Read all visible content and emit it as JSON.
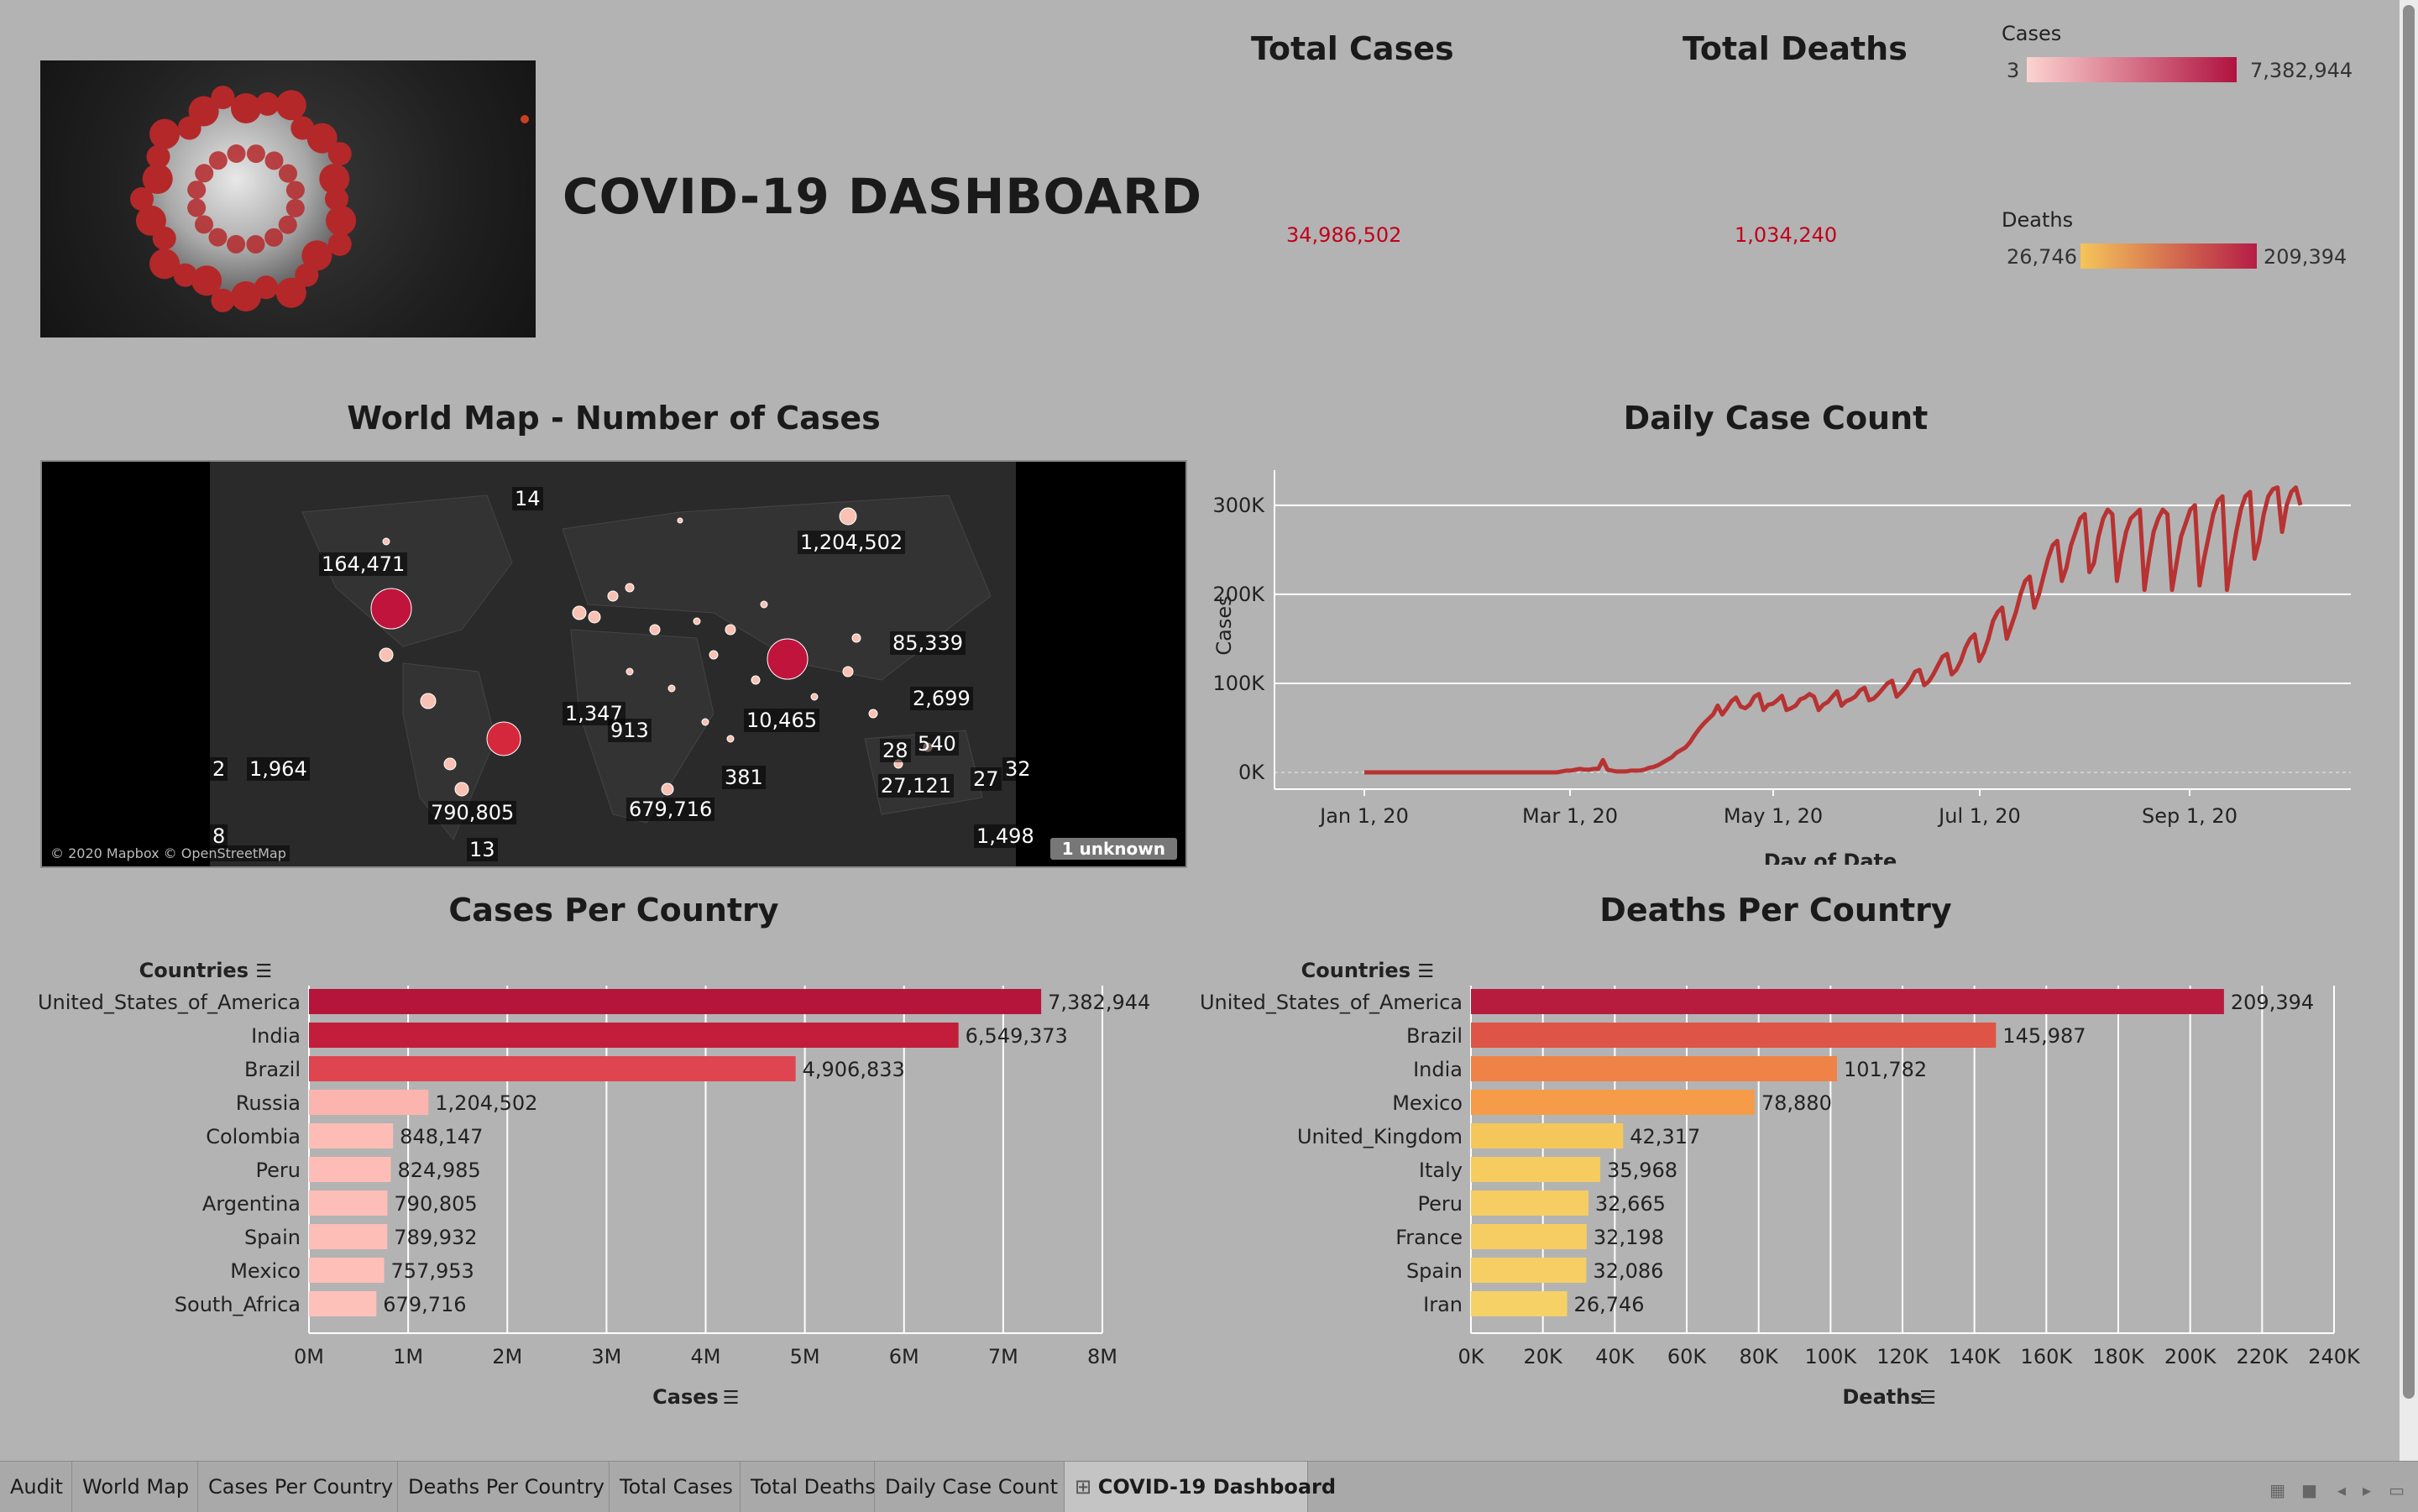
{
  "dashboard": {
    "title": "COVID-19 DASHBOARD",
    "image_alt": "coronavirus-image"
  },
  "kpis": {
    "total_cases_label": "Total Cases",
    "total_cases_value": "34,986,502",
    "total_deaths_label": "Total Deaths",
    "total_deaths_value": "1,034,240"
  },
  "legends": {
    "cases": {
      "label": "Cases",
      "min": "3",
      "max": "7,382,944",
      "color_from": "#fcd3d0",
      "color_to": "#b01240"
    },
    "deaths": {
      "label": "Deaths",
      "min": "26,746",
      "max": "209,394",
      "color_from": "#f5c55a",
      "color_to": "#b51d46"
    }
  },
  "world_map": {
    "title": "World Map - Number of Cases",
    "copyright": "© 2020 Mapbox © OpenStreetMap",
    "unknown_badge": "1 unknown",
    "labels": [
      "14",
      "1,204,502",
      "164,471",
      "85,339",
      "2,699",
      "1,347",
      "913",
      "10,465",
      "2",
      "1,964",
      "28",
      "540",
      "27,121",
      "27",
      "32",
      "381",
      "790,805",
      "679,716",
      "8",
      "13",
      "1,498"
    ]
  },
  "chart_data": [
    {
      "type": "line",
      "title": "Daily Case Count",
      "xlabel": "Day of Date",
      "ylabel": "Cases",
      "x_ticks": [
        "Jan 1, 20",
        "Mar 1, 20",
        "May 1, 20",
        "Jul 1, 20",
        "Sep 1, 20"
      ],
      "y_ticks": [
        "0K",
        "100K",
        "200K",
        "300K"
      ],
      "ylim": [
        0,
        330000
      ],
      "color": "#b83232",
      "series": [
        {
          "values": [
            0,
            0,
            0,
            0,
            0,
            0,
            0,
            0,
            0,
            0,
            0,
            0,
            0,
            0,
            0,
            0,
            0,
            0,
            0,
            0,
            0,
            0,
            0,
            0,
            0,
            0,
            0,
            0,
            0,
            0,
            0,
            0,
            0,
            0,
            0,
            0,
            0,
            0,
            0,
            0,
            0,
            0,
            0,
            1000,
            2000,
            2000,
            3000,
            4000,
            3000,
            3000,
            4000,
            4000,
            14000,
            3000,
            2000,
            1000,
            1000,
            1000,
            2000,
            2000,
            2000,
            3000,
            5000,
            6000,
            8000,
            11000,
            14000,
            17000,
            22000,
            25000,
            28000,
            34000,
            42000,
            49000,
            55000,
            60000,
            65000,
            75000,
            65000,
            72000,
            80000,
            84000,
            74000,
            72000,
            76000,
            85000,
            88000,
            70000,
            76000,
            77000,
            81000,
            86000,
            70000,
            72000,
            75000,
            82000,
            84000,
            88000,
            85000,
            70000,
            76000,
            79000,
            85000,
            91000,
            75000,
            80000,
            82000,
            85000,
            92000,
            95000,
            81000,
            83000,
            88000,
            94000,
            100000,
            103000,
            85000,
            90000,
            96000,
            103000,
            113000,
            115000,
            98000,
            102000,
            110000,
            120000,
            130000,
            133000,
            110000,
            115000,
            125000,
            140000,
            150000,
            155000,
            125000,
            135000,
            150000,
            170000,
            180000,
            185000,
            150000,
            165000,
            180000,
            200000,
            215000,
            220000,
            185000,
            200000,
            220000,
            240000,
            255000,
            260000,
            215000,
            230000,
            255000,
            270000,
            285000,
            290000,
            225000,
            235000,
            265000,
            285000,
            295000,
            290000,
            215000,
            245000,
            270000,
            285000,
            290000,
            295000,
            205000,
            240000,
            270000,
            285000,
            295000,
            290000,
            205000,
            235000,
            265000,
            280000,
            295000,
            300000,
            210000,
            240000,
            265000,
            290000,
            305000,
            310000,
            205000,
            240000,
            270000,
            295000,
            310000,
            315000,
            240000,
            260000,
            290000,
            310000,
            318000,
            320000,
            270000,
            300000,
            315000,
            320000,
            300000
          ]
        }
      ]
    },
    {
      "type": "bar",
      "title": "Cases Per Country",
      "category_header": "Countries",
      "xlabel": "Cases",
      "x_ticks": [
        "0M",
        "1M",
        "2M",
        "3M",
        "4M",
        "5M",
        "6M",
        "7M",
        "8M"
      ],
      "xlim": [
        0,
        8000000
      ],
      "categories": [
        "United_States_of_America",
        "India",
        "Brazil",
        "Russia",
        "Colombia",
        "Peru",
        "Argentina",
        "Spain",
        "Mexico",
        "South_Africa"
      ],
      "values": [
        7382944,
        6549373,
        4906833,
        1204502,
        848147,
        824985,
        790805,
        789932,
        757953,
        679716
      ],
      "value_labels": [
        "7,382,944",
        "6,549,373",
        "4,906,833",
        "1,204,502",
        "848,147",
        "824,985",
        "790,805",
        "789,932",
        "757,953",
        "679,716"
      ],
      "colors": [
        "#b5153b",
        "#c31d3c",
        "#de4550",
        "#fbb5ae",
        "#fdbdb6",
        "#fdbdb6",
        "#fdbeb7",
        "#fdbeb7",
        "#fdbfb8",
        "#fdc1ba"
      ]
    },
    {
      "type": "bar",
      "title": "Deaths Per Country",
      "category_header": "Countries",
      "xlabel": "Deaths",
      "x_ticks": [
        "0K",
        "20K",
        "40K",
        "60K",
        "80K",
        "100K",
        "120K",
        "140K",
        "160K",
        "180K",
        "200K",
        "220K",
        "240K"
      ],
      "xlim": [
        0,
        240000
      ],
      "categories": [
        "United_States_of_America",
        "Brazil",
        "India",
        "Mexico",
        "United_Kingdom",
        "Italy",
        "Peru",
        "France",
        "Spain",
        "Iran"
      ],
      "values": [
        209394,
        145987,
        101782,
        78880,
        42317,
        35968,
        32665,
        32198,
        32086,
        26746
      ],
      "value_labels": [
        "209,394",
        "145,987",
        "101,782",
        "78,880",
        "42,317",
        "35,968",
        "32,665",
        "32,198",
        "32,086",
        "26,746"
      ],
      "colors": [
        "#b71c3f",
        "#de5547",
        "#ef8246",
        "#f69c48",
        "#f5c75a",
        "#f6cb5f",
        "#f6cd62",
        "#f6cd62",
        "#f6ce63",
        "#f6d166"
      ]
    }
  ],
  "tabs": [
    "Audit",
    "World Map",
    "Cases Per Country",
    "Deaths Per Country",
    "Total Cases",
    "Total Deaths",
    "Daily Case Count",
    "COVID-19 Dashboard"
  ],
  "active_tab": "COVID-19 Dashboard"
}
